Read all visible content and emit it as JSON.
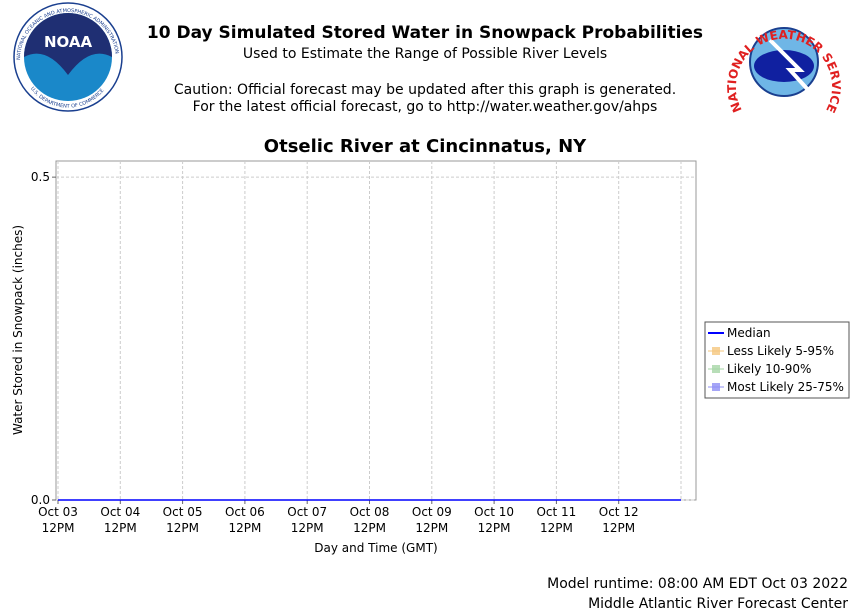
{
  "header": {
    "title": "10 Day Simulated Stored Water in Snowpack Probabilities",
    "subtitle": "Used to Estimate the Range of Possible River Levels",
    "caution": "Caution: Official forecast may be updated after this graph is generated.",
    "latest": "For the latest official forecast, go to http://water.weather.gov/ahps",
    "noaa_logo": "NOAA",
    "noaa_ring_top": "NATIONAL OCEANIC AND ATMOSPHERIC ADMINISTRATION",
    "noaa_ring_bottom": "U.S. DEPARTMENT OF COMMERCE",
    "nws_ring": "NATIONAL WEATHER SERVICE"
  },
  "chart_data": {
    "type": "line",
    "title": "Otselic River at Cincinnatus, NY",
    "xlabel": "Day and Time (GMT)",
    "ylabel": "Water Stored in Snowpack (inches)",
    "categories": [
      "Oct 03\n12PM",
      "Oct 04\n12PM",
      "Oct 05\n12PM",
      "Oct 06\n12PM",
      "Oct 07\n12PM",
      "Oct 08\n12PM",
      "Oct 09\n12PM",
      "Oct 10\n12PM",
      "Oct 11\n12PM",
      "Oct 12\n12PM",
      null
    ],
    "series": [
      {
        "name": "Median",
        "color": "#0000ff",
        "values": [
          0,
          0,
          0,
          0,
          0,
          0,
          0,
          0,
          0,
          0,
          0
        ]
      },
      {
        "name": "Less Likely 5-95%",
        "color": "#f5c77e"
      },
      {
        "name": "Likely 10-90%",
        "color": "#a6d6a6"
      },
      {
        "name": "Most Likely 25-75%",
        "color": "#8f8ff5"
      }
    ],
    "ylim": [
      0,
      0.525
    ],
    "yticks": [
      {
        "value": 0,
        "label": "0.0"
      },
      0.5
    ],
    "grid": true
  },
  "footer": {
    "runtime": "Model runtime: 08:00 AM EDT Oct 03 2022",
    "center": "Middle Atlantic River Forecast Center"
  }
}
